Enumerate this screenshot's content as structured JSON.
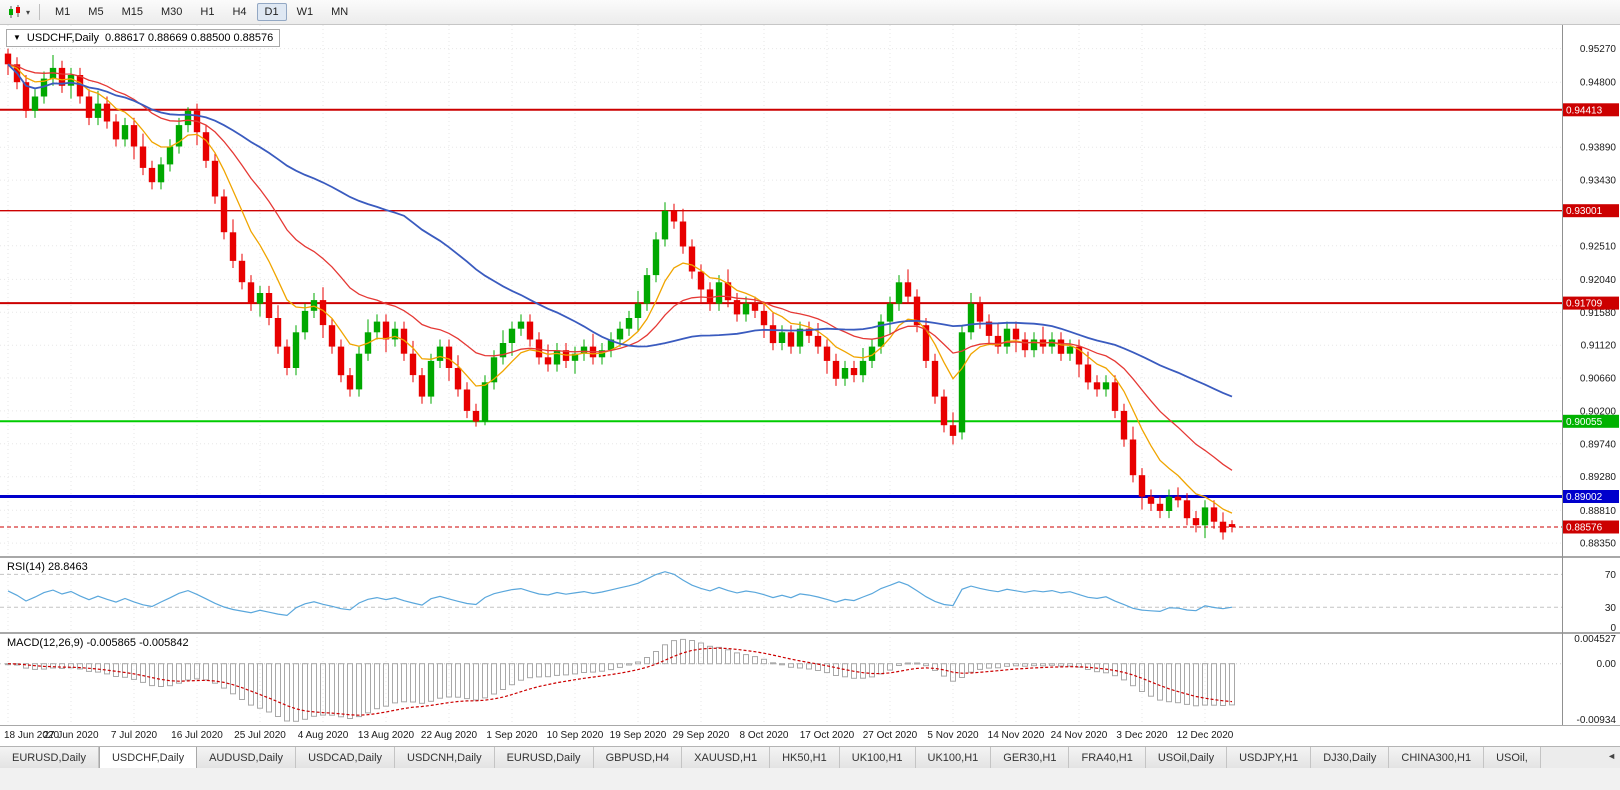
{
  "colors": {
    "up": "#00a800",
    "down": "#e80000",
    "grid": "#e7e7e7",
    "axis_text": "#1a1a1a",
    "macd_signal": "#cc0000"
  },
  "toolbar": {
    "timeframes": [
      "M1",
      "M5",
      "M15",
      "M30",
      "H1",
      "H4",
      "D1",
      "W1",
      "MN"
    ],
    "active_timeframe": "D1"
  },
  "title": {
    "symbol": "USDCHF,Daily",
    "ohlc": "0.88617 0.88669 0.88500 0.88576"
  },
  "chart_data": {
    "type": "candlestick",
    "symbol": "USDCHF",
    "timeframe": "Daily",
    "open": "0.88617",
    "high": "0.88669",
    "low": "0.88500",
    "close": "0.88576",
    "y_axis": {
      "min": 0.8817,
      "max": 0.956,
      "labels": [
        "0.95270",
        "0.94800",
        "0.93890",
        "0.93430",
        "0.92510",
        "0.92040",
        "0.91580",
        "0.91120",
        "0.90660",
        "0.90200",
        "0.89740",
        "0.89280",
        "0.88810",
        "0.88350"
      ]
    },
    "badges": [
      {
        "v": 0.94413,
        "t": "0.94413",
        "c": "#cc0000"
      },
      {
        "v": 0.93001,
        "t": "0.93001",
        "c": "#cc0000"
      },
      {
        "v": 0.91709,
        "t": "0.91709",
        "c": "#cc0000"
      },
      {
        "v": 0.90055,
        "t": "0.90055",
        "c": "#00b200"
      },
      {
        "v": 0.89002,
        "t": "0.89002",
        "c": "#0000cc"
      },
      {
        "v": 0.88576,
        "t": "0.88576",
        "c": "#cc0000",
        "current": true
      }
    ],
    "h_lines": [
      {
        "v": 0.94413,
        "c": "#cc0000",
        "w": 2
      },
      {
        "v": 0.93001,
        "c": "#cc0000",
        "w": 1.4
      },
      {
        "v": 0.91709,
        "c": "#cc0000",
        "w": 2
      },
      {
        "v": 0.90055,
        "c": "#00cc00",
        "w": 2
      },
      {
        "v": 0.89002,
        "c": "#0000cc",
        "w": 3
      },
      {
        "v": 0.88576,
        "c": "#cc0000",
        "w": 1,
        "dash": true
      }
    ],
    "x_labels": [
      {
        "i": 0,
        "t": "18 Jun 2020"
      },
      {
        "i": 7,
        "t": "27 Jun 2020"
      },
      {
        "i": 14,
        "t": "7 Jul 2020"
      },
      {
        "i": 21,
        "t": "16 Jul 2020"
      },
      {
        "i": 28,
        "t": "25 Jul 2020"
      },
      {
        "i": 35,
        "t": "4 Aug 2020"
      },
      {
        "i": 42,
        "t": "13 Aug 2020"
      },
      {
        "i": 49,
        "t": "22 Aug 2020"
      },
      {
        "i": 56,
        "t": "1 Sep 2020"
      },
      {
        "i": 63,
        "t": "10 Sep 2020"
      },
      {
        "i": 70,
        "t": "19 Sep 2020"
      },
      {
        "i": 77,
        "t": "29 Sep 2020"
      },
      {
        "i": 84,
        "t": "8 Oct 2020"
      },
      {
        "i": 91,
        "t": "17 Oct 2020"
      },
      {
        "i": 98,
        "t": "27 Oct 2020"
      },
      {
        "i": 105,
        "t": "5 Nov 2020"
      },
      {
        "i": 112,
        "t": "14 Nov 2020"
      },
      {
        "i": 119,
        "t": "24 Nov 2020"
      },
      {
        "i": 126,
        "t": "3 Dec 2020"
      },
      {
        "i": 133,
        "t": "12 Dec 2020"
      }
    ],
    "candles": [
      [
        0.952,
        0.9527,
        0.949,
        0.9505
      ],
      [
        0.9505,
        0.9515,
        0.947,
        0.948
      ],
      [
        0.948,
        0.949,
        0.943,
        0.944
      ],
      [
        0.944,
        0.947,
        0.943,
        0.946
      ],
      [
        0.946,
        0.9495,
        0.945,
        0.9485
      ],
      [
        0.9485,
        0.9518,
        0.9475,
        0.95
      ],
      [
        0.95,
        0.951,
        0.9465,
        0.9475
      ],
      [
        0.9475,
        0.95,
        0.9457,
        0.949
      ],
      [
        0.949,
        0.95,
        0.945,
        0.946
      ],
      [
        0.946,
        0.947,
        0.942,
        0.943
      ],
      [
        0.943,
        0.9468,
        0.942,
        0.945
      ],
      [
        0.945,
        0.946,
        0.9415,
        0.9425
      ],
      [
        0.9425,
        0.9435,
        0.939,
        0.94
      ],
      [
        0.94,
        0.943,
        0.939,
        0.942
      ],
      [
        0.942,
        0.943,
        0.9372,
        0.939
      ],
      [
        0.939,
        0.9408,
        0.935,
        0.936
      ],
      [
        0.936,
        0.937,
        0.933,
        0.934
      ],
      [
        0.934,
        0.9375,
        0.933,
        0.9365
      ],
      [
        0.9365,
        0.94,
        0.9355,
        0.939
      ],
      [
        0.939,
        0.943,
        0.938,
        0.942
      ],
      [
        0.942,
        0.9445,
        0.941,
        0.944
      ],
      [
        0.944,
        0.945,
        0.9392,
        0.941
      ],
      [
        0.941,
        0.942,
        0.936,
        0.937
      ],
      [
        0.937,
        0.938,
        0.931,
        0.932
      ],
      [
        0.932,
        0.933,
        0.926,
        0.927
      ],
      [
        0.927,
        0.9288,
        0.922,
        0.923
      ],
      [
        0.923,
        0.924,
        0.919,
        0.92
      ],
      [
        0.92,
        0.921,
        0.916,
        0.917
      ],
      [
        0.917,
        0.9195,
        0.9152,
        0.9185
      ],
      [
        0.9185,
        0.9195,
        0.914,
        0.915
      ],
      [
        0.915,
        0.9168,
        0.91,
        0.911
      ],
      [
        0.911,
        0.912,
        0.907,
        0.908
      ],
      [
        0.908,
        0.914,
        0.907,
        0.913
      ],
      [
        0.913,
        0.917,
        0.912,
        0.916
      ],
      [
        0.916,
        0.9185,
        0.915,
        0.9175
      ],
      [
        0.9175,
        0.9193,
        0.9122,
        0.914
      ],
      [
        0.914,
        0.915,
        0.91,
        0.911
      ],
      [
        0.911,
        0.912,
        0.906,
        0.907
      ],
      [
        0.907,
        0.908,
        0.904,
        0.905
      ],
      [
        0.905,
        0.911,
        0.904,
        0.91
      ],
      [
        0.91,
        0.9148,
        0.909,
        0.913
      ],
      [
        0.913,
        0.9155,
        0.912,
        0.9145
      ],
      [
        0.9145,
        0.9155,
        0.9102,
        0.912
      ],
      [
        0.912,
        0.9145,
        0.911,
        0.9135
      ],
      [
        0.9135,
        0.9145,
        0.909,
        0.91
      ],
      [
        0.91,
        0.9118,
        0.906,
        0.907
      ],
      [
        0.907,
        0.908,
        0.903,
        0.904
      ],
      [
        0.904,
        0.91,
        0.903,
        0.909
      ],
      [
        0.909,
        0.912,
        0.908,
        0.911
      ],
      [
        0.911,
        0.912,
        0.9062,
        0.908
      ],
      [
        0.908,
        0.9098,
        0.904,
        0.905
      ],
      [
        0.905,
        0.906,
        0.901,
        0.902
      ],
      [
        0.902,
        0.903,
        0.8998,
        0.9005
      ],
      [
        0.9005,
        0.907,
        0.9,
        0.906
      ],
      [
        0.906,
        0.9105,
        0.905,
        0.9095
      ],
      [
        0.9095,
        0.9133,
        0.9085,
        0.9115
      ],
      [
        0.9115,
        0.9145,
        0.9097,
        0.9135
      ],
      [
        0.9135,
        0.9155,
        0.9125,
        0.9145
      ],
      [
        0.9145,
        0.9155,
        0.911,
        0.912
      ],
      [
        0.912,
        0.913,
        0.9085,
        0.9095
      ],
      [
        0.9095,
        0.9113,
        0.9075,
        0.9085
      ],
      [
        0.9085,
        0.9115,
        0.9075,
        0.9105
      ],
      [
        0.9105,
        0.9115,
        0.908,
        0.909
      ],
      [
        0.909,
        0.911,
        0.9072,
        0.91
      ],
      [
        0.91,
        0.912,
        0.909,
        0.911
      ],
      [
        0.911,
        0.9128,
        0.9085,
        0.9095
      ],
      [
        0.9095,
        0.9115,
        0.9085,
        0.9105
      ],
      [
        0.9105,
        0.913,
        0.9095,
        0.912
      ],
      [
        0.912,
        0.9145,
        0.911,
        0.9135
      ],
      [
        0.9135,
        0.916,
        0.9125,
        0.915
      ],
      [
        0.915,
        0.9188,
        0.9132,
        0.917
      ],
      [
        0.917,
        0.922,
        0.916,
        0.921
      ],
      [
        0.921,
        0.927,
        0.92,
        0.926
      ],
      [
        0.926,
        0.9312,
        0.925,
        0.93
      ],
      [
        0.93,
        0.931,
        0.9275,
        0.9285
      ],
      [
        0.9285,
        0.9303,
        0.924,
        0.925
      ],
      [
        0.925,
        0.926,
        0.9205,
        0.9215
      ],
      [
        0.9215,
        0.9225,
        0.9172,
        0.919
      ],
      [
        0.919,
        0.92,
        0.916,
        0.917
      ],
      [
        0.917,
        0.921,
        0.916,
        0.92
      ],
      [
        0.92,
        0.9218,
        0.9165,
        0.9175
      ],
      [
        0.9175,
        0.9185,
        0.9145,
        0.9155
      ],
      [
        0.9155,
        0.918,
        0.9145,
        0.917
      ],
      [
        0.917,
        0.918,
        0.915,
        0.916
      ],
      [
        0.916,
        0.917,
        0.9122,
        0.914
      ],
      [
        0.914,
        0.9158,
        0.9105,
        0.9115
      ],
      [
        0.9115,
        0.914,
        0.9105,
        0.913
      ],
      [
        0.913,
        0.914,
        0.91,
        0.911
      ],
      [
        0.911,
        0.9145,
        0.91,
        0.9135
      ],
      [
        0.9135,
        0.9145,
        0.9115,
        0.9125
      ],
      [
        0.9125,
        0.9143,
        0.91,
        0.911
      ],
      [
        0.911,
        0.912,
        0.9072,
        0.909
      ],
      [
        0.909,
        0.91,
        0.9055,
        0.9065
      ],
      [
        0.9065,
        0.909,
        0.9055,
        0.908
      ],
      [
        0.908,
        0.909,
        0.906,
        0.907
      ],
      [
        0.907,
        0.9108,
        0.906,
        0.909
      ],
      [
        0.909,
        0.912,
        0.908,
        0.911
      ],
      [
        0.911,
        0.9155,
        0.91,
        0.9145
      ],
      [
        0.9145,
        0.918,
        0.9127,
        0.917
      ],
      [
        0.917,
        0.921,
        0.916,
        0.92
      ],
      [
        0.92,
        0.9218,
        0.917,
        0.918
      ],
      [
        0.918,
        0.919,
        0.913,
        0.914
      ],
      [
        0.914,
        0.915,
        0.908,
        0.909
      ],
      [
        0.909,
        0.91,
        0.903,
        0.904
      ],
      [
        0.904,
        0.905,
        0.899,
        0.9
      ],
      [
        0.9,
        0.9018,
        0.8973,
        0.8985
      ],
      [
        0.899,
        0.914,
        0.898,
        0.913
      ],
      [
        0.913,
        0.9185,
        0.912,
        0.917
      ],
      [
        0.917,
        0.918,
        0.9135,
        0.9145
      ],
      [
        0.9145,
        0.9155,
        0.9115,
        0.9125
      ],
      [
        0.9125,
        0.9143,
        0.91,
        0.911
      ],
      [
        0.911,
        0.9145,
        0.91,
        0.9135
      ],
      [
        0.9135,
        0.9145,
        0.9102,
        0.912
      ],
      [
        0.912,
        0.913,
        0.9095,
        0.9105
      ],
      [
        0.9105,
        0.913,
        0.9095,
        0.912
      ],
      [
        0.912,
        0.9138,
        0.91,
        0.911
      ],
      [
        0.911,
        0.913,
        0.91,
        0.912
      ],
      [
        0.912,
        0.913,
        0.909,
        0.91
      ],
      [
        0.91,
        0.912,
        0.909,
        0.911
      ],
      [
        0.911,
        0.912,
        0.9067,
        0.9085
      ],
      [
        0.9085,
        0.9103,
        0.905,
        0.906
      ],
      [
        0.906,
        0.907,
        0.904,
        0.905
      ],
      [
        0.905,
        0.907,
        0.904,
        0.906
      ],
      [
        0.906,
        0.907,
        0.901,
        0.902
      ],
      [
        0.902,
        0.903,
        0.897,
        0.898
      ],
      [
        0.898,
        0.8998,
        0.892,
        0.893
      ],
      [
        0.893,
        0.894,
        0.8882,
        0.89
      ],
      [
        0.89,
        0.891,
        0.888,
        0.889
      ],
      [
        0.889,
        0.89,
        0.887,
        0.888
      ],
      [
        0.888,
        0.891,
        0.887,
        0.89
      ],
      [
        0.89,
        0.8913,
        0.8885,
        0.8895
      ],
      [
        0.8895,
        0.8905,
        0.886,
        0.887
      ],
      [
        0.887,
        0.888,
        0.885,
        0.886
      ],
      [
        0.886,
        0.8895,
        0.8842,
        0.8885
      ],
      [
        0.8885,
        0.8895,
        0.8855,
        0.8865
      ],
      [
        0.8865,
        0.8878,
        0.884,
        0.885
      ],
      [
        0.88617,
        0.88669,
        0.885,
        0.88576
      ]
    ],
    "moving_averages": [
      {
        "kind": "ema",
        "period": 8,
        "color": "#f0a500"
      },
      {
        "kind": "ema",
        "period": 20,
        "color": "#e53935"
      },
      {
        "kind": "sma",
        "period": 45,
        "color": "#3a5bbf"
      }
    ],
    "rsi": {
      "label": "RSI(14) 28.8463",
      "period": 14,
      "color": "#5aa7dc",
      "levels": [
        70,
        30
      ],
      "axis_labels": [
        {
          "v": 70,
          "t": "70"
        },
        {
          "v": 30,
          "t": "30"
        },
        {
          "v": 0,
          "t": "0"
        }
      ]
    },
    "macd": {
      "label": "MACD(12,26,9) -0.005865 -0.005842",
      "fast": 12,
      "slow": 26,
      "signal_period": 9,
      "axis_max": 0.004527,
      "axis_min": -0.00934,
      "axis_labels": [
        {
          "v": 0.004527,
          "t": "0.004527"
        },
        {
          "v": 0,
          "t": "0.00"
        },
        {
          "v": -0.00934,
          "t": "-0.00934"
        }
      ]
    }
  },
  "bottom_tabs": {
    "scroll_icon": "◄",
    "items": [
      {
        "label": "EURUSD,Daily"
      },
      {
        "label": "USDCHF,Daily",
        "active": true
      },
      {
        "label": "AUDUSD,Daily"
      },
      {
        "label": "USDCAD,Daily"
      },
      {
        "label": "USDCNH,Daily"
      },
      {
        "label": "EURUSD,Daily"
      },
      {
        "label": "GBPUSD,H4"
      },
      {
        "label": "XAUUSD,H1"
      },
      {
        "label": "HK50,H1"
      },
      {
        "label": "UK100,H1"
      },
      {
        "label": "UK100,H1"
      },
      {
        "label": "GER30,H1"
      },
      {
        "label": "FRA40,H1"
      },
      {
        "label": "USOil,Daily"
      },
      {
        "label": "USDJPY,H1"
      },
      {
        "label": "DJ30,Daily"
      },
      {
        "label": "CHINA300,H1"
      },
      {
        "label": "USOil,"
      }
    ]
  }
}
